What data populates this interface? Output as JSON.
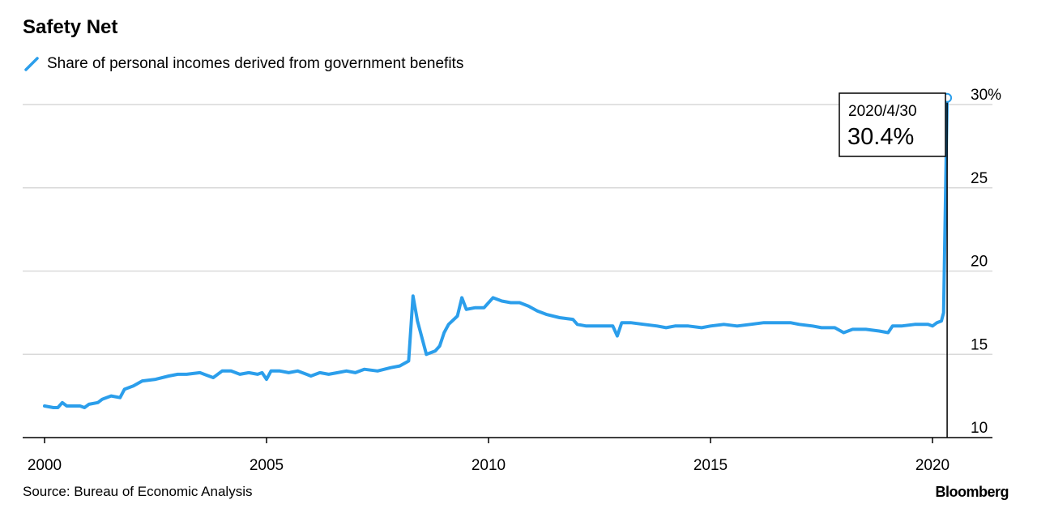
{
  "title": "Safety Net",
  "legend_label": "Share of personal incomes derived from government benefits",
  "source": "Source: Bureau of Economic Analysis",
  "brand": "Bloomberg",
  "colors": {
    "line": "#2b9eeb",
    "grid": "#d9d9d9",
    "axis": "#000000",
    "callout": "#000000"
  },
  "chart_data": {
    "type": "line",
    "title": "Safety Net",
    "xlabel": "",
    "ylabel": "",
    "xlim": [
      2000.0,
      2021.3
    ],
    "ylim": [
      10,
      30
    ],
    "x_ticks": [
      2000,
      2005,
      2010,
      2015,
      2020
    ],
    "x_tick_labels": [
      "2000",
      "2005",
      "2010",
      "2015",
      "2020"
    ],
    "y_ticks": [
      10,
      15,
      20,
      25,
      30
    ],
    "y_tick_labels": [
      "10",
      "15",
      "20",
      "25",
      "30%"
    ],
    "grid": true,
    "legend": "top-left",
    "series": [
      {
        "name": "Share of personal incomes derived from government benefits",
        "x": [
          2000.0,
          2000.2,
          2000.3,
          2000.4,
          2000.5,
          2000.8,
          2000.9,
          2001.0,
          2001.2,
          2001.3,
          2001.5,
          2001.7,
          2001.8,
          2002.0,
          2002.2,
          2002.5,
          2002.8,
          2003.0,
          2003.2,
          2003.5,
          2003.8,
          2004.0,
          2004.2,
          2004.4,
          2004.6,
          2004.8,
          2004.9,
          2005.0,
          2005.1,
          2005.3,
          2005.5,
          2005.7,
          2005.9,
          2006.0,
          2006.2,
          2006.4,
          2006.6,
          2006.8,
          2007.0,
          2007.2,
          2007.5,
          2007.8,
          2008.0,
          2008.2,
          2008.3,
          2008.4,
          2008.6,
          2008.8,
          2008.9,
          2009.0,
          2009.1,
          2009.3,
          2009.4,
          2009.5,
          2009.7,
          2009.9,
          2010.1,
          2010.3,
          2010.5,
          2010.7,
          2010.9,
          2011.1,
          2011.3,
          2011.6,
          2011.9,
          2012.0,
          2012.2,
          2012.5,
          2012.8,
          2012.9,
          2013.0,
          2013.2,
          2013.5,
          2013.8,
          2014.0,
          2014.2,
          2014.5,
          2014.8,
          2015.0,
          2015.3,
          2015.6,
          2015.9,
          2016.2,
          2016.5,
          2016.8,
          2017.0,
          2017.3,
          2017.5,
          2017.8,
          2018.0,
          2018.2,
          2018.5,
          2018.8,
          2019.0,
          2019.1,
          2019.3,
          2019.6,
          2019.9,
          2020.0,
          2020.1,
          2020.2,
          2020.25,
          2020.33
        ],
        "values": [
          11.9,
          11.8,
          11.8,
          12.1,
          11.9,
          11.9,
          11.8,
          12.0,
          12.1,
          12.3,
          12.5,
          12.4,
          12.9,
          13.1,
          13.4,
          13.5,
          13.7,
          13.8,
          13.8,
          13.9,
          13.6,
          14.0,
          14.0,
          13.8,
          13.9,
          13.8,
          13.9,
          13.5,
          14.0,
          14.0,
          13.9,
          14.0,
          13.8,
          13.7,
          13.9,
          13.8,
          13.9,
          14.0,
          13.9,
          14.1,
          14.0,
          14.2,
          14.3,
          14.6,
          18.5,
          17.0,
          15.0,
          15.2,
          15.5,
          16.3,
          16.8,
          17.3,
          18.4,
          17.7,
          17.8,
          17.8,
          18.4,
          18.2,
          18.1,
          18.1,
          17.9,
          17.6,
          17.4,
          17.2,
          17.1,
          16.8,
          16.7,
          16.7,
          16.7,
          16.1,
          16.9,
          16.9,
          16.8,
          16.7,
          16.6,
          16.7,
          16.7,
          16.6,
          16.7,
          16.8,
          16.7,
          16.8,
          16.9,
          16.9,
          16.9,
          16.8,
          16.7,
          16.6,
          16.6,
          16.3,
          16.5,
          16.5,
          16.4,
          16.3,
          16.7,
          16.7,
          16.8,
          16.8,
          16.7,
          16.9,
          17.0,
          17.5,
          30.4
        ]
      }
    ],
    "annotation": {
      "date": "2020/4/30",
      "value": "30.4%"
    }
  }
}
